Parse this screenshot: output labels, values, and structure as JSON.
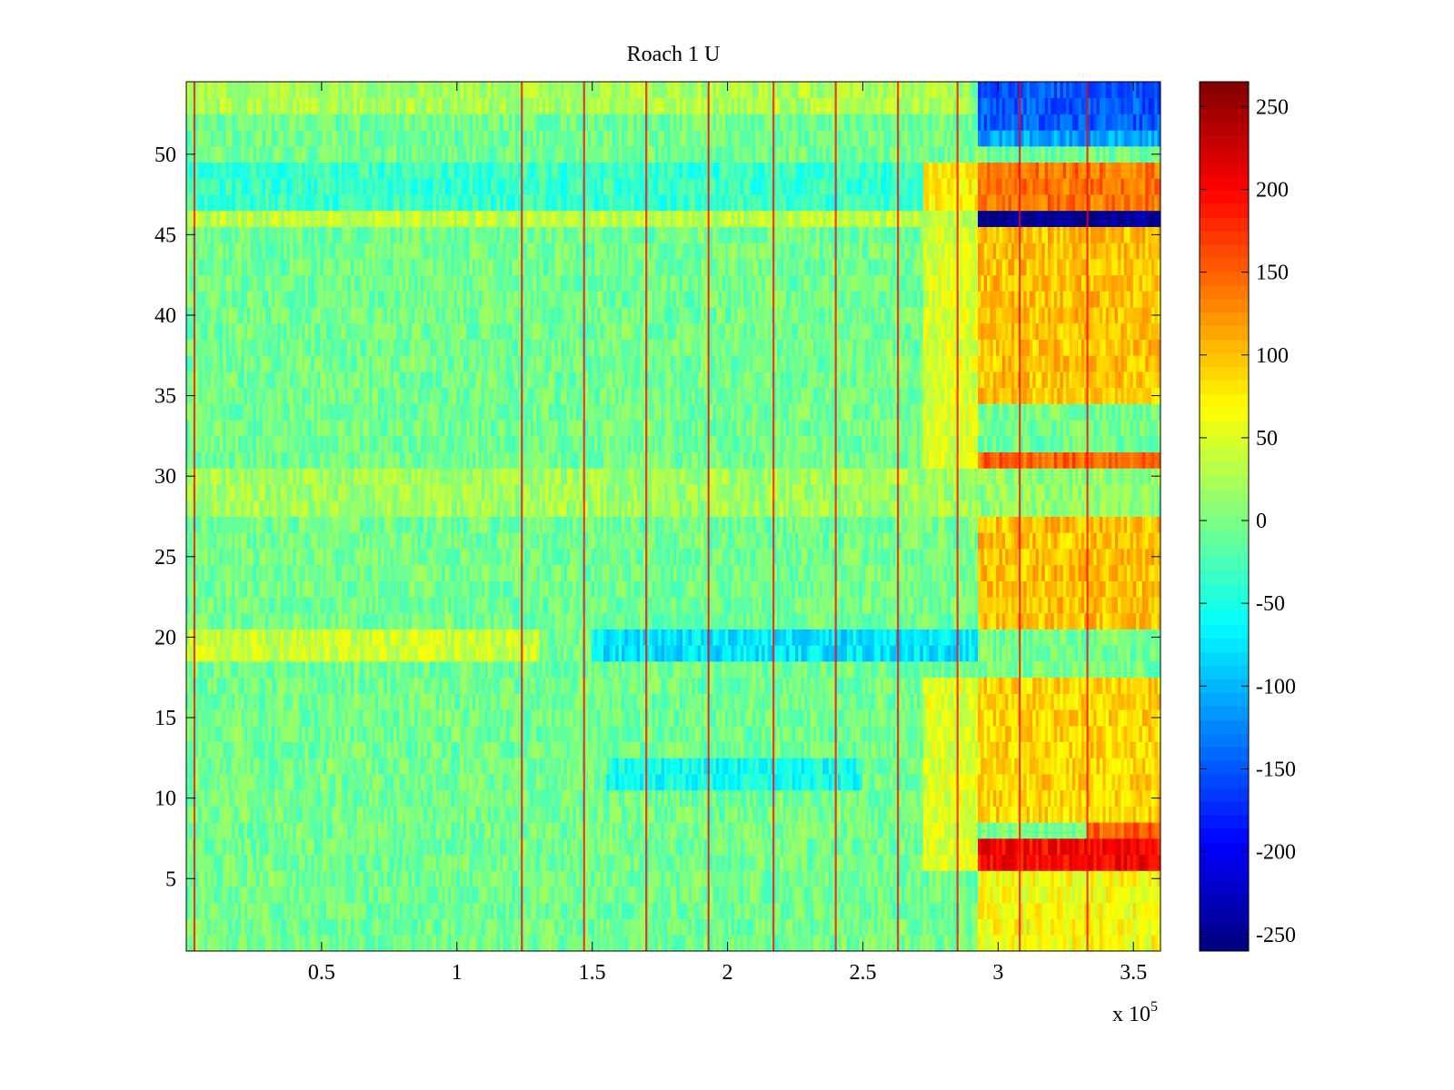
{
  "chart_data": {
    "type": "heatmap",
    "title": "Roach 1 U",
    "xlabel": "",
    "ylabel": "",
    "x_multiplier": "x 10",
    "x_multiplier_exponent": "5",
    "xlim": [
      0,
      3.6
    ],
    "ylim": [
      0.5,
      54.5
    ],
    "x_ticks": [
      0.5,
      1,
      1.5,
      2,
      2.5,
      3,
      3.5
    ],
    "x_tick_labels": [
      "0.5",
      "1",
      "1.5",
      "2",
      "2.5",
      "3",
      "3.5"
    ],
    "y_ticks": [
      5,
      10,
      15,
      20,
      25,
      30,
      35,
      40,
      45,
      50
    ],
    "y_tick_labels": [
      "5",
      "10",
      "15",
      "20",
      "25",
      "30",
      "35",
      "40",
      "45",
      "50"
    ],
    "rows": 54,
    "colormap": "jet",
    "clim": [
      -260,
      265
    ],
    "colorbar_ticks": [
      250,
      200,
      150,
      100,
      50,
      0,
      -50,
      -100,
      -150,
      -200,
      -250
    ],
    "colorbar_tick_labels": [
      "250",
      "200",
      "150",
      "100",
      "50",
      "0",
      "-50",
      "-100",
      "-150",
      "-200",
      "-250"
    ],
    "baseline_value": -5,
    "noise_amplitude": 28,
    "vertical_spike_x": [
      0.03,
      1.24,
      1.47,
      1.7,
      1.93,
      2.17,
      2.4,
      2.63,
      2.85,
      3.08,
      3.33
    ],
    "vertical_spike_value": 200,
    "regions": [
      {
        "label": "row 46 late band",
        "x": [
          2.92,
          3.6
        ],
        "y": [
          45.5,
          46.5
        ],
        "value": -250
      },
      {
        "label": "rows 52-54 late band",
        "x": [
          2.92,
          3.6
        ],
        "y": [
          51.5,
          54.5
        ],
        "value": -150
      },
      {
        "label": "row 51 late band",
        "x": [
          2.92,
          3.6
        ],
        "y": [
          50.5,
          51.5
        ],
        "value": -110
      },
      {
        "label": "row 52 late core",
        "x": [
          3.26,
          3.56
        ],
        "y": [
          51.5,
          52.5
        ],
        "value": -210
      },
      {
        "label": "rows 47-49 late band",
        "x": [
          2.92,
          3.6
        ],
        "y": [
          46.5,
          49.5
        ],
        "value": 140
      },
      {
        "label": "rows 47-49 transition",
        "x": [
          2.72,
          2.92
        ],
        "y": [
          46.5,
          49.5
        ],
        "value": 70
      },
      {
        "label": "rows 6-7 late band",
        "x": [
          2.92,
          3.6
        ],
        "y": [
          5.5,
          7.5
        ],
        "value": 200
      },
      {
        "label": "row 8 late band",
        "x": [
          3.33,
          3.6
        ],
        "y": [
          7.5,
          8.5
        ],
        "value": 150
      },
      {
        "label": "rows 31 late band",
        "x": [
          2.92,
          3.6
        ],
        "y": [
          30.5,
          31.5
        ],
        "value": 150
      },
      {
        "label": "rows 35-45 late band",
        "x": [
          2.92,
          3.6
        ],
        "y": [
          34.5,
          45.5
        ],
        "value": 100
      },
      {
        "label": "rows 21-27 late band",
        "x": [
          2.92,
          3.6
        ],
        "y": [
          20.5,
          27.5
        ],
        "value": 100
      },
      {
        "label": "rows 9-17 late band",
        "x": [
          2.92,
          3.6
        ],
        "y": [
          8.5,
          17.5
        ],
        "value": 90
      },
      {
        "label": "rows 1-5 late band",
        "x": [
          2.92,
          3.6
        ],
        "y": [
          0.5,
          5.5
        ],
        "value": 65
      },
      {
        "label": "rows 28-30 late band",
        "x": [
          2.92,
          3.6
        ],
        "y": [
          27.5,
          30.5
        ],
        "value": 10
      },
      {
        "label": "rows 31-45 transition",
        "x": [
          2.72,
          2.92
        ],
        "y": [
          30.5,
          45.5
        ],
        "value": 50
      },
      {
        "label": "rows 6-17 transition",
        "x": [
          2.72,
          2.92
        ],
        "y": [
          5.5,
          17.5
        ],
        "value": 50
      },
      {
        "label": "rows 19-20 dip",
        "x": [
          1.5,
          2.92
        ],
        "y": [
          18.5,
          20.5
        ],
        "value": -75
      },
      {
        "label": "rows 11-12 dip",
        "x": [
          1.55,
          2.5
        ],
        "y": [
          10.5,
          12.5
        ],
        "value": -55
      },
      {
        "label": "rows 19-20 early",
        "x": [
          0,
          1.3
        ],
        "y": [
          18.5,
          20.5
        ],
        "value": 40
      },
      {
        "label": "rows 53-54 early",
        "x": [
          0,
          2.9
        ],
        "y": [
          52.5,
          54.5
        ],
        "value": 25
      },
      {
        "label": "row 46 early",
        "x": [
          0,
          2.92
        ],
        "y": [
          45.5,
          46.5
        ],
        "value": 35
      },
      {
        "label": "rows 47-49 early",
        "x": [
          0,
          2.72
        ],
        "y": [
          46.5,
          49.5
        ],
        "value": -35
      },
      {
        "label": "rows 28-30 early",
        "x": [
          0,
          2.92
        ],
        "y": [
          27.5,
          30.5
        ],
        "value": 20
      }
    ]
  }
}
